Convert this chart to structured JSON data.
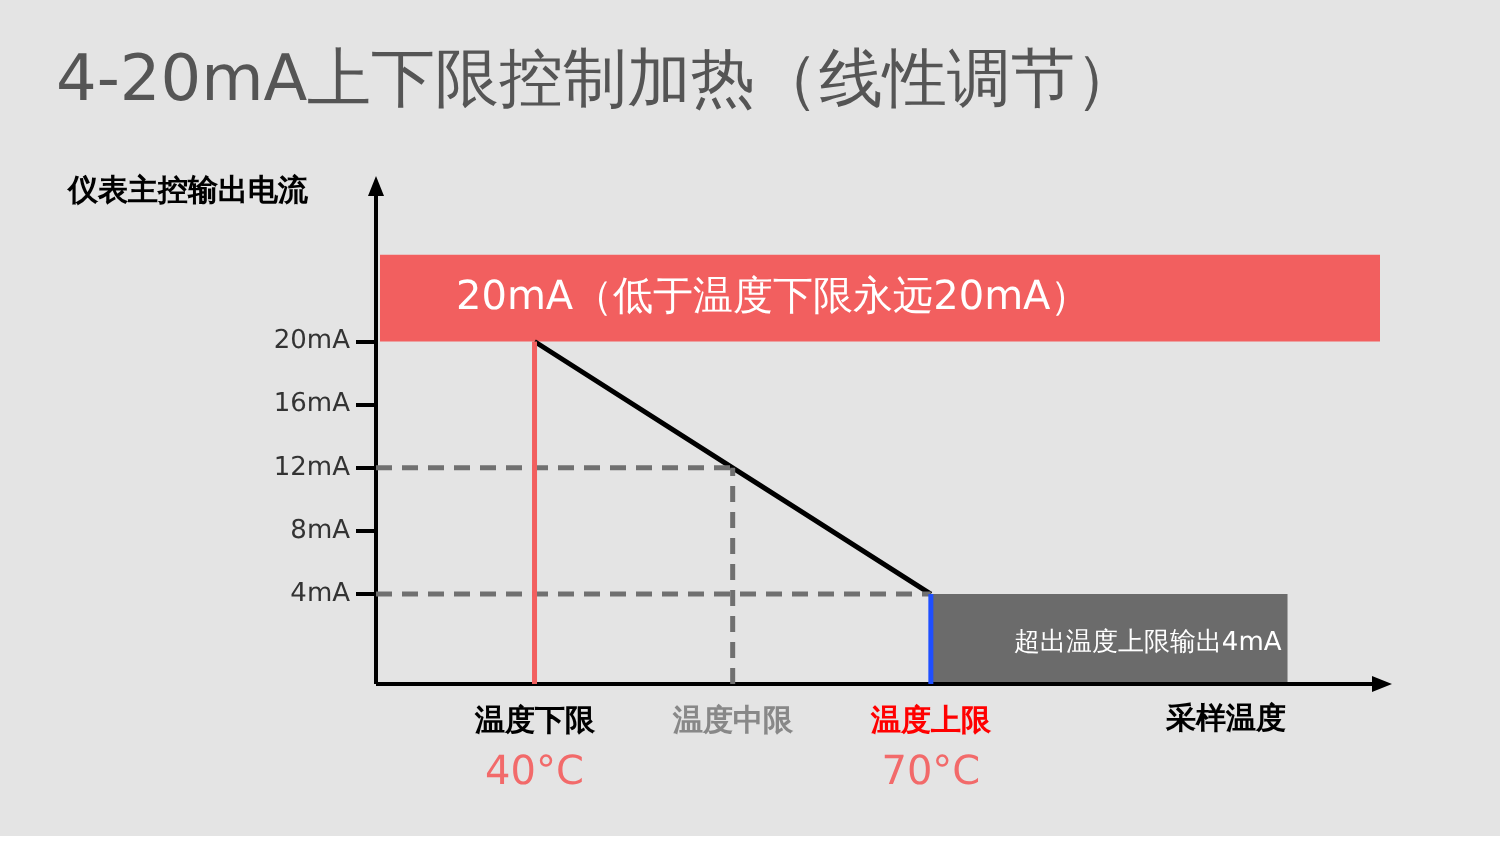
{
  "chart_data": {
    "type": "line",
    "title": "4-20mA上下限控制加热（线性调节）",
    "xlabel": "采样温度",
    "ylabel": "仪表主控输出电流",
    "x": [
      40,
      55,
      70
    ],
    "series": [
      {
        "color": "#000000",
        "values": [
          20,
          12,
          4
        ]
      },
      {
        "x": [
          28,
          55
        ],
        "values": [
          12,
          12
        ],
        "color": "#707070",
        "line_style": "dashed"
      },
      {
        "x": [
          28,
          70
        ],
        "values": [
          4,
          4
        ],
        "color": "#707070",
        "line_style": "dashed"
      },
      {
        "x": [
          40,
          40
        ],
        "values": [
          -1.7,
          20
        ],
        "color": "#f25f5f"
      },
      {
        "x": [
          55,
          55
        ],
        "values": [
          -1.7,
          12
        ],
        "color": "#707070",
        "line_style": "dashed"
      },
      {
        "x": [
          70,
          70
        ],
        "values": [
          -1.7,
          4
        ],
        "color": "#1f4fff"
      }
    ],
    "xlim": [
      28,
      104
    ],
    "xticks": [
      {
        "value": 40,
        "label": "40°C"
      },
      {
        "value": 70,
        "label": "70°C"
      }
    ],
    "annotations": [
      {
        "text": "温度下限",
        "x": 40,
        "y": -1.7
      },
      {
        "text": "温度中限",
        "x": 55,
        "y": -1.7
      },
      {
        "text": "温度上限",
        "x": 70,
        "y": -1.7
      }
    ],
    "ylim": [
      -1.7,
      29.6
    ],
    "yticks": [
      {
        "value": 4,
        "label": "4mA"
      },
      {
        "value": 8,
        "label": "8mA"
      },
      {
        "value": 12,
        "label": "12mA"
      },
      {
        "value": 16,
        "label": "16mA"
      },
      {
        "value": 20,
        "label": "20mA"
      }
    ],
    "bands": [
      {
        "axis": "y",
        "from": 20,
        "to": 25.5,
        "label": "20mA（低于温度下限永远20mA）",
        "color": "#f25f5f"
      },
      {
        "axis": "x",
        "from": 70,
        "to": 97,
        "label": "超出温度上限输出4mA",
        "color": "#6b6b6b"
      }
    ],
    "grid": false,
    "legend": false,
    "marker": "none",
    "line_style": "solid"
  }
}
